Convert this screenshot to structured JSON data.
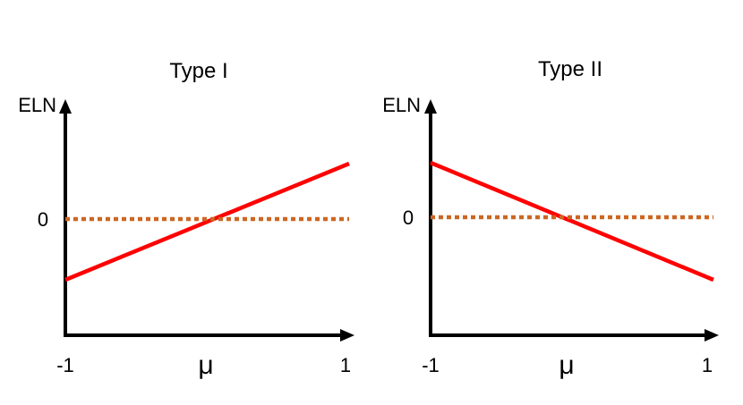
{
  "chart_data": [
    {
      "type": "line",
      "title": "Type I",
      "xlabel": "μ",
      "ylabel": "ELN",
      "xlim": [
        -1,
        1
      ],
      "x_ticks": [
        "-1",
        "1"
      ],
      "y_ticks": [
        "0"
      ],
      "grid": false,
      "series": [
        {
          "style": "solid",
          "color": "#ff0000",
          "x": [
            -1,
            1
          ],
          "y": [
            -1,
            1
          ]
        },
        {
          "style": "dotted",
          "color": "#cc6622",
          "x": [
            -1,
            1
          ],
          "y": [
            0,
            0
          ]
        }
      ]
    },
    {
      "type": "line",
      "title": "Type II",
      "xlabel": "μ",
      "ylabel": "ELN",
      "xlim": [
        -1,
        1
      ],
      "x_ticks": [
        "-1",
        "1"
      ],
      "y_ticks": [
        "0"
      ],
      "grid": false,
      "series": [
        {
          "style": "solid",
          "color": "#ff0000",
          "x": [
            -1,
            1
          ],
          "y": [
            1,
            -1
          ]
        },
        {
          "style": "dotted",
          "color": "#cc6622",
          "x": [
            -1,
            1
          ],
          "y": [
            0,
            0
          ]
        }
      ]
    }
  ]
}
